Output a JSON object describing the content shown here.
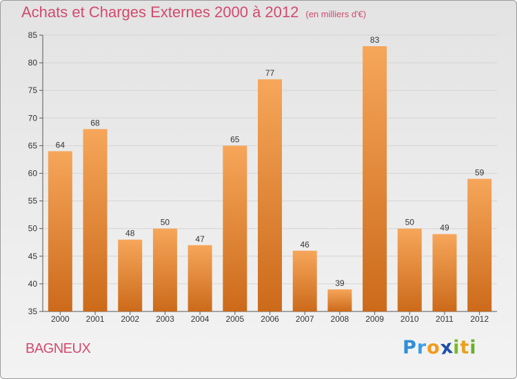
{
  "title": "Achats et Charges Externes 2000 à 2012",
  "unit_note": "(en milliers d'€)",
  "location": "BAGNEUX",
  "logo": {
    "text": "Proxiti",
    "letters": [
      {
        "ch": "P",
        "color": "#2f8fd8"
      },
      {
        "ch": "r",
        "color": "#3a9ee8"
      },
      {
        "ch": "o",
        "color": "#f39a1b"
      },
      {
        "ch": "x",
        "color": "#1f4fa8"
      },
      {
        "ch": "i",
        "color": "#79b928"
      },
      {
        "ch": "t",
        "color": "#e8a11a"
      },
      {
        "ch": "i",
        "color": "#6cae2a"
      }
    ]
  },
  "colors": {
    "bar_top": "#f6a65a",
    "bar_bottom": "#cc6a1a",
    "title": "#d24a6e",
    "grid": "#d4d4d4"
  },
  "chart_data": {
    "type": "bar",
    "categories": [
      "2000",
      "2001",
      "2002",
      "2003",
      "2004",
      "2005",
      "2006",
      "2007",
      "2008",
      "2009",
      "2010",
      "2011",
      "2012"
    ],
    "values": [
      64,
      68,
      48,
      50,
      47,
      65,
      77,
      46,
      39,
      83,
      50,
      49,
      59
    ],
    "ylim": [
      35,
      85
    ],
    "yticks": [
      35,
      40,
      45,
      50,
      55,
      60,
      65,
      70,
      75,
      80,
      85
    ],
    "grid": true,
    "data_labels": true
  }
}
